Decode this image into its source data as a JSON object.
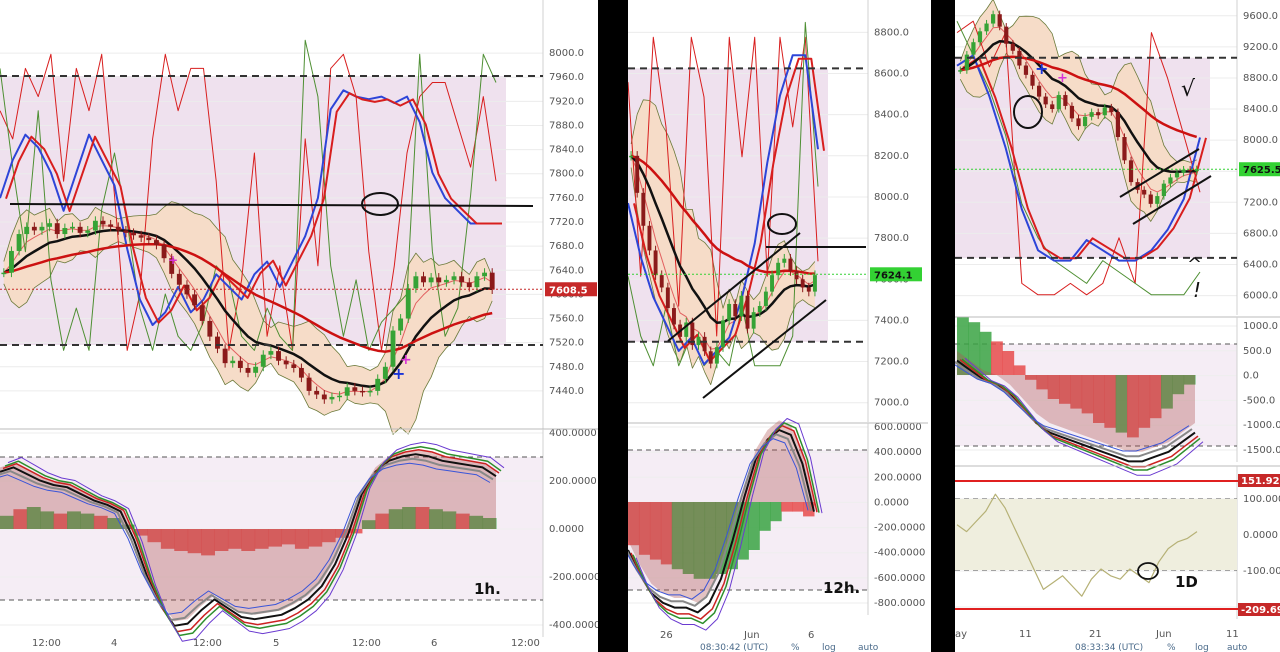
{
  "colors": {
    "up": "#36a336",
    "down": "#8b1a1a",
    "bbFill": "#f6dcc8",
    "band": "#efe1ee",
    "lineRed": "#d81e1e",
    "lineBlue": "#2d45d8",
    "lineGreen": "#4e8f33",
    "bullHist": "#3aa343",
    "bearHist": "#e64b4b",
    "priceTag": "#c62828",
    "priceTagGreen": "#33d133",
    "cciLine": "#b6b176"
  },
  "panels": [
    {
      "id": "1h",
      "timeframe_label": "1h.",
      "price_axis": [
        "8000.0",
        "7960.0",
        "7920.0",
        "7880.0",
        "7840.0",
        "7800.0",
        "7760.0",
        "7720.0",
        "7680.0",
        "7640.0",
        "7600.0",
        "7560.0",
        "7520.0",
        "7480.0",
        "7440.0"
      ],
      "price_tag": "7608.5",
      "osc_axis": [
        "400.0000",
        "200.0000",
        "0.0000",
        "-200.0000",
        "-400.0000"
      ],
      "time_axis": [
        "12:00",
        "4",
        "12:00",
        "5",
        "12:00",
        "6",
        "12:00"
      ],
      "price_range": [
        7410,
        8025
      ],
      "candles": [
        7636,
        7672,
        7700,
        7712,
        7706,
        7712,
        7718,
        7700,
        7710,
        7712,
        7702,
        7706,
        7722,
        7716,
        7712,
        7706,
        7702,
        7698,
        7694,
        7690,
        7682,
        7660,
        7634,
        7616,
        7600,
        7582,
        7556,
        7530,
        7510,
        7486,
        7490,
        7478,
        7470,
        7480,
        7500,
        7506,
        7490,
        7484,
        7478,
        7462,
        7440,
        7434,
        7426,
        7430,
        7432,
        7446,
        7440,
        7438,
        7440,
        7460,
        7480,
        7540,
        7560,
        7610,
        7630,
        7620,
        7628,
        7620,
        7624,
        7630,
        7620,
        7612,
        7630,
        7636,
        7608
      ]
    },
    {
      "id": "12h",
      "timeframe_label": "12h.",
      "price_axis": [
        "8800.0",
        "8600.0",
        "8400.0",
        "8200.0",
        "8000.0",
        "7800.0",
        "7600.0",
        "7400.0",
        "7200.0",
        "7000.0"
      ],
      "price_tag": "7624.1",
      "osc_axis": [
        "600.0000",
        "400.0000",
        "200.0000",
        "0.0000",
        "-200.0000",
        "-400.0000",
        "-600.0000",
        "-800.0000"
      ],
      "time_axis": [
        "26",
        "Jun",
        "6"
      ],
      "status_time": "08:30:42 (UTC)",
      "status_items": [
        "%",
        "log",
        "auto"
      ],
      "price_range": [
        6950,
        8860
      ],
      "candles": [
        8200,
        8020,
        7860,
        7740,
        7620,
        7560,
        7460,
        7380,
        7320,
        7390,
        7280,
        7320,
        7250,
        7190,
        7270,
        7400,
        7480,
        7420,
        7520,
        7360,
        7440,
        7470,
        7540,
        7620,
        7680,
        7700,
        7640,
        7600,
        7560,
        7540,
        7620
      ]
    },
    {
      "id": "1D",
      "timeframe_label": "1D",
      "price_axis": [
        "9600.0",
        "9200.0",
        "8800.0",
        "8400.0",
        "8000.0",
        "7600.0",
        "7200.0",
        "6800.0",
        "6400.0",
        "6000.0"
      ],
      "price_tag": "7625.5",
      "osc1_axis": [
        "1000.0",
        "500.0",
        "0.0",
        "-500.0",
        "-1000.0",
        "-1500.0"
      ],
      "osc2_axis": [
        "100.0000",
        "0.0000",
        "-100.0000",
        "-200.0000"
      ],
      "osc2_tags": [
        "151.924",
        "-209.690"
      ],
      "time_axis": [
        "ay",
        "11",
        "21",
        "Jun",
        "11"
      ],
      "status_time": "08:33:34 (UTC)",
      "status_items": [
        "%",
        "log",
        "auto"
      ],
      "price_range": [
        5840,
        9700
      ],
      "candles": [
        8900,
        9100,
        9260,
        9400,
        9500,
        9620,
        9460,
        9240,
        9150,
        8960,
        8840,
        8700,
        8560,
        8460,
        8400,
        8580,
        8440,
        8280,
        8180,
        8300,
        8360,
        8320,
        8420,
        8360,
        8040,
        7740,
        7460,
        7360,
        7300,
        7180,
        7280,
        7440,
        7520,
        7580,
        7620,
        7600,
        7625
      ]
    }
  ],
  "annotations": {
    "check_mark": "√",
    "exclaim": "!",
    "caret": "^"
  }
}
